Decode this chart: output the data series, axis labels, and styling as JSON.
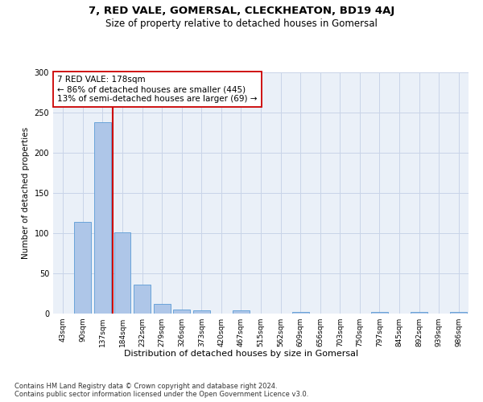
{
  "title": "7, RED VALE, GOMERSAL, CLECKHEATON, BD19 4AJ",
  "subtitle": "Size of property relative to detached houses in Gomersal",
  "xlabel": "Distribution of detached houses by size in Gomersal",
  "ylabel": "Number of detached properties",
  "categories": [
    "43sqm",
    "90sqm",
    "137sqm",
    "184sqm",
    "232sqm",
    "279sqm",
    "326sqm",
    "373sqm",
    "420sqm",
    "467sqm",
    "515sqm",
    "562sqm",
    "609sqm",
    "656sqm",
    "703sqm",
    "750sqm",
    "797sqm",
    "845sqm",
    "892sqm",
    "939sqm",
    "986sqm"
  ],
  "values": [
    0,
    114,
    238,
    101,
    36,
    12,
    5,
    4,
    0,
    4,
    0,
    0,
    2,
    0,
    0,
    0,
    2,
    0,
    2,
    0,
    2
  ],
  "bar_color": "#aec6e8",
  "bar_edge_color": "#5b9bd5",
  "vline_color": "#cc0000",
  "vline_x_index": 2.5,
  "annotation_text": "7 RED VALE: 178sqm\n← 86% of detached houses are smaller (445)\n13% of semi-detached houses are larger (69) →",
  "annotation_box_color": "#ffffff",
  "annotation_box_edge": "#cc0000",
  "ylim": [
    0,
    300
  ],
  "yticks": [
    0,
    50,
    100,
    150,
    200,
    250,
    300
  ],
  "grid_color": "#c8d4e8",
  "bg_color": "#eaf0f8",
  "footnote": "Contains HM Land Registry data © Crown copyright and database right 2024.\nContains public sector information licensed under the Open Government Licence v3.0.",
  "title_fontsize": 9.5,
  "subtitle_fontsize": 8.5,
  "xlabel_fontsize": 8,
  "ylabel_fontsize": 7.5,
  "tick_fontsize": 6.5,
  "annot_fontsize": 7.5,
  "footnote_fontsize": 6
}
